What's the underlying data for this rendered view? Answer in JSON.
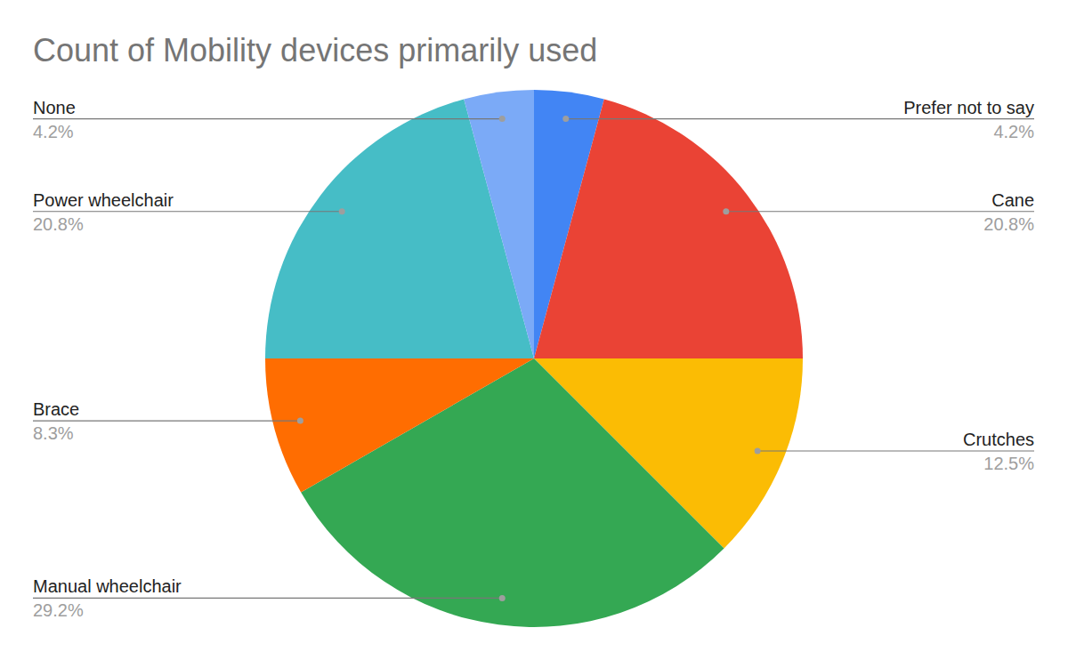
{
  "chart_data": {
    "type": "pie",
    "title": "Count of Mobility devices primarily used",
    "categories": [
      "Prefer not to say",
      "Cane",
      "Crutches",
      "Manual wheelchair",
      "Brace",
      "Power wheelchair",
      "None"
    ],
    "values": [
      4.2,
      20.8,
      12.5,
      29.2,
      8.3,
      20.8,
      4.2
    ],
    "value_labels": [
      "4.2%",
      "20.8%",
      "12.5%",
      "29.2%",
      "8.3%",
      "20.8%",
      "4.2%"
    ],
    "colors": [
      "#4285f4",
      "#ea4335",
      "#fbbc04",
      "#34a853",
      "#ff6d01",
      "#46bdc6",
      "#7baaf7"
    ],
    "data_labels": true
  }
}
